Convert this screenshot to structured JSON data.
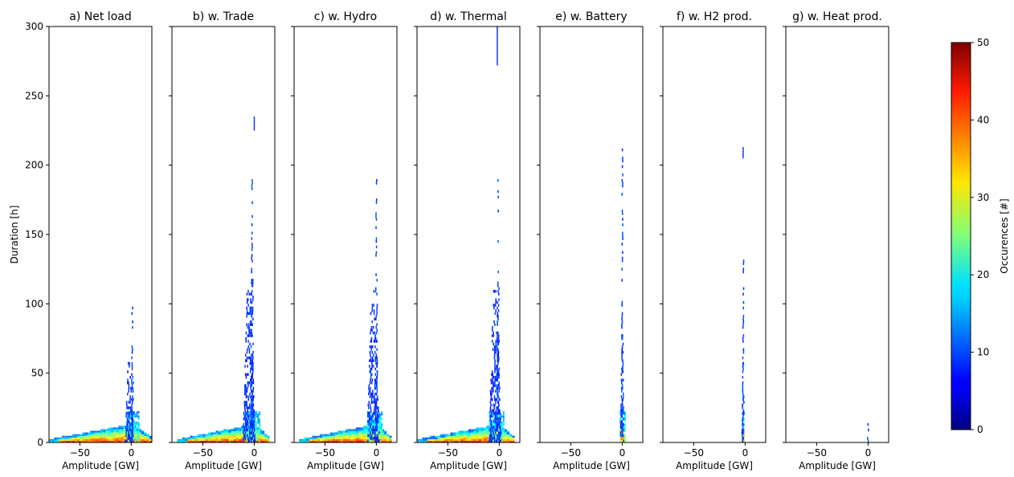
{
  "chart_data": {
    "type": "heatmap",
    "ylabel": "Duration [h]",
    "xlabel": "Amplitude [GW]",
    "x_ticks": [
      -50,
      0
    ],
    "y_ticks": [
      0,
      50,
      100,
      150,
      200,
      250,
      300
    ],
    "xlim": [
      -80,
      20
    ],
    "ylim": [
      0,
      300
    ],
    "colorbar": {
      "label": "Occurences [#]",
      "ticks": [
        0,
        10,
        20,
        30,
        40,
        50
      ],
      "range": [
        0,
        50
      ],
      "colormap": "jet"
    },
    "panels": [
      {
        "title": "a) Net load",
        "features": {
          "base": {
            "x0": -80,
            "x1": 20,
            "maxh": 12,
            "v": 45
          },
          "spikes": [
            {
              "x": 1,
              "w": 2.5,
              "h": 112,
              "v": 8
            },
            {
              "x": -2,
              "w": 8,
              "h": 60,
              "v": 7
            }
          ],
          "core": {
            "x": 2,
            "w": 12,
            "h": 22,
            "v": 22
          }
        }
      },
      {
        "title": "b) w. Trade",
        "features": {
          "base": {
            "x0": -75,
            "x1": 15,
            "maxh": 12,
            "v": 45
          },
          "spikes": [
            {
              "x": -2,
              "w": 3,
              "h": 190,
              "v": 8
            },
            {
              "x": -5,
              "w": 12,
              "h": 110,
              "v": 7
            }
          ],
          "isolated": [
            {
              "x": 0,
              "y0": 225,
              "y1": 235,
              "v": 8
            }
          ],
          "core": {
            "x": -2,
            "w": 14,
            "h": 22,
            "v": 22
          }
        }
      },
      {
        "title": "c) w. Hydro",
        "features": {
          "base": {
            "x0": -75,
            "x1": 15,
            "maxh": 12,
            "v": 45
          },
          "spikes": [
            {
              "x": 0,
              "w": 3,
              "h": 190,
              "v": 8
            },
            {
              "x": -3,
              "w": 12,
              "h": 110,
              "v": 7
            }
          ],
          "core": {
            "x": -2,
            "w": 14,
            "h": 22,
            "v": 22
          }
        }
      },
      {
        "title": "d) w. Thermal",
        "features": {
          "base": {
            "x0": -80,
            "x1": 15,
            "maxh": 12,
            "v": 45
          },
          "spikes": [
            {
              "x": -1,
              "w": 3,
              "h": 190,
              "v": 8
            },
            {
              "x": -4,
              "w": 12,
              "h": 110,
              "v": 7
            }
          ],
          "isolated": [
            {
              "x": -2,
              "y0": 272,
              "y1": 300,
              "v": 8
            }
          ],
          "core": {
            "x": -3,
            "w": 14,
            "h": 22,
            "v": 22
          }
        }
      },
      {
        "title": "e) w. Battery",
        "features": {
          "spikes": [
            {
              "x": 0,
              "w": 1.5,
              "h": 215,
              "v": 8
            },
            {
              "x": 0,
              "w": 4,
              "h": 90,
              "v": 8
            }
          ],
          "core": {
            "x": 0,
            "w": 5,
            "h": 22,
            "v": 25
          },
          "hot": {
            "x": 0,
            "w": 3,
            "h": 8,
            "v": 38
          }
        }
      },
      {
        "title": "f) w. H2 prod.",
        "features": {
          "spikes": [
            {
              "x": -2,
              "w": 1.5,
              "h": 142,
              "v": 8
            },
            {
              "x": -2,
              "w": 3,
              "h": 60,
              "v": 8
            }
          ],
          "isolated": [
            {
              "x": -2,
              "y0": 205,
              "y1": 212,
              "v": 8
            }
          ],
          "core": {
            "x": -2,
            "w": 3,
            "h": 22,
            "v": 25
          },
          "hot": {
            "x": -2,
            "w": 2.5,
            "h": 8,
            "v": 38
          }
        }
      },
      {
        "title": "g) w. Heat prod.",
        "features": {
          "spikes": [
            {
              "x": 0,
              "w": 1.5,
              "h": 17,
              "v": 8
            }
          ]
        }
      }
    ]
  }
}
